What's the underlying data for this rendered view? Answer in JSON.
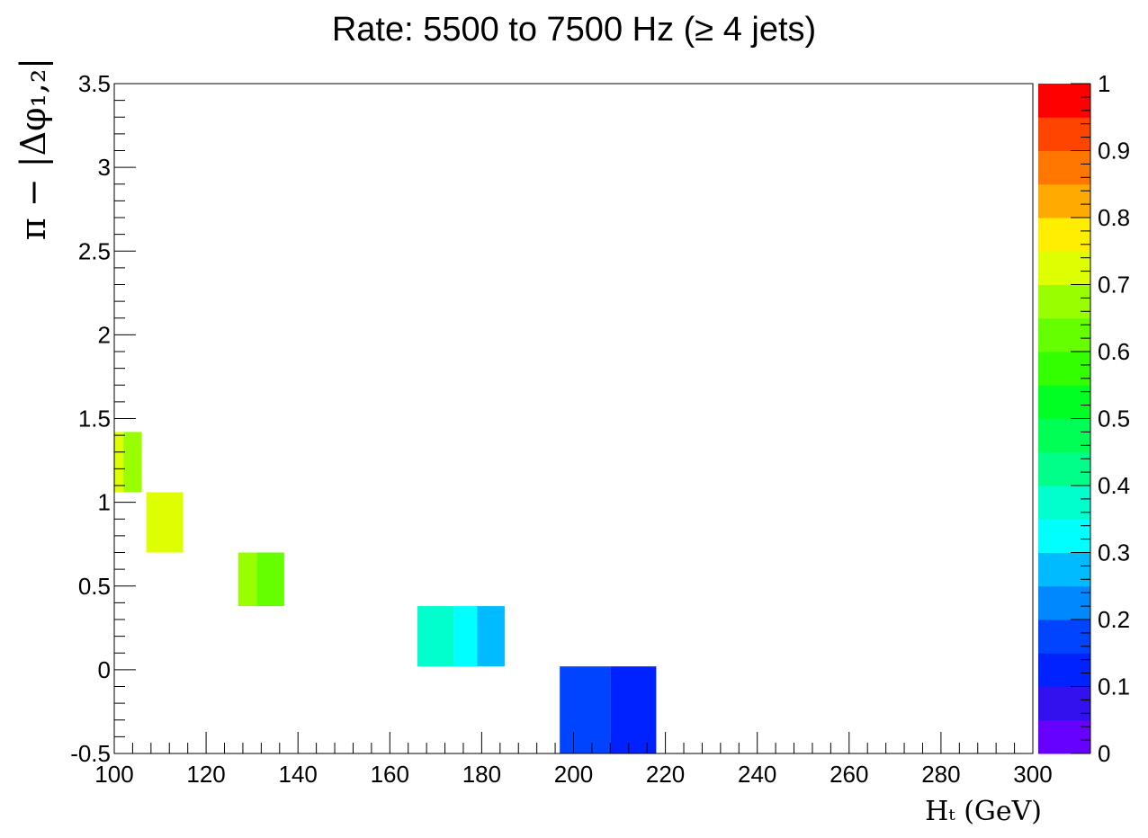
{
  "chart_data": {
    "type": "heatmap",
    "title": "Rate: 5500 to 7500 Hz (≥ 4 jets)",
    "xlabel": "Hₜ (GeV)",
    "ylabel": "π − |Δφ₁,₂|",
    "xlim": [
      100,
      300
    ],
    "ylim": [
      -0.5,
      3.5
    ],
    "xticks": [
      "100",
      "120",
      "140",
      "160",
      "180",
      "200",
      "220",
      "240",
      "260",
      "280",
      "300"
    ],
    "yticks": [
      "-0.5",
      "0",
      "0.5",
      "1",
      "1.5",
      "2",
      "2.5",
      "3",
      "3.5"
    ],
    "zlim": [
      0,
      1
    ],
    "zticks": [
      "0",
      "0.1",
      "0.2",
      "0.3",
      "0.4",
      "0.5",
      "0.6",
      "0.7",
      "0.8",
      "0.9",
      "1"
    ],
    "grid": false,
    "palette_colors": [
      "#6600ff",
      "#3311ee",
      "#0022ff",
      "#0044ff",
      "#0088ff",
      "#00bbff",
      "#00ffff",
      "#00ffcc",
      "#00ff88",
      "#00ff55",
      "#00ff22",
      "#33ff00",
      "#66ff00",
      "#99ff00",
      "#ddff00",
      "#ffee00",
      "#ffaa00",
      "#ff7700",
      "#ff4400",
      "#ff0000"
    ],
    "cells": [
      {
        "x0": 100,
        "x1": 102,
        "y0": 1.06,
        "y1": 1.42,
        "z": 0.73
      },
      {
        "x0": 102,
        "x1": 106,
        "y0": 1.06,
        "y1": 1.42,
        "z": 0.68
      },
      {
        "x0": 107,
        "x1": 115,
        "y0": 0.7,
        "y1": 1.06,
        "z": 0.73
      },
      {
        "x0": 127,
        "x1": 131,
        "y0": 0.38,
        "y1": 0.7,
        "z": 0.68
      },
      {
        "x0": 131,
        "x1": 137,
        "y0": 0.38,
        "y1": 0.7,
        "z": 0.63
      },
      {
        "x0": 166,
        "x1": 174,
        "y0": 0.02,
        "y1": 0.38,
        "z": 0.38
      },
      {
        "x0": 174,
        "x1": 179,
        "y0": 0.02,
        "y1": 0.38,
        "z": 0.33
      },
      {
        "x0": 179,
        "x1": 185,
        "y0": 0.02,
        "y1": 0.38,
        "z": 0.28
      },
      {
        "x0": 197,
        "x1": 208,
        "y0": -0.5,
        "y1": 0.02,
        "z": 0.18
      },
      {
        "x0": 208,
        "x1": 218,
        "y0": -0.5,
        "y1": 0.02,
        "z": 0.13
      }
    ]
  }
}
